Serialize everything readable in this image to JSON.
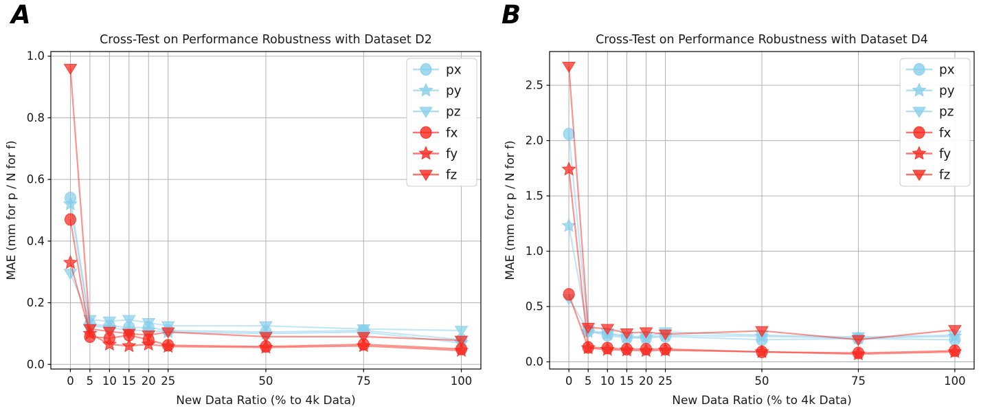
{
  "figure": {
    "background": "#ffffff",
    "grid_color": "#b0b0b0",
    "spine_color": "#000000",
    "blue": "#87CEEB",
    "red": "#f8281e"
  },
  "chart_data": [
    {
      "type": "line",
      "panel_label": "A",
      "title": "Cross-Test on Performance Robustness with Dataset D2",
      "xlabel": "New Data Ratio (% to 4k Data)",
      "ylabel": "MAE (mm for p / N for f)",
      "x": [
        0,
        5,
        10,
        15,
        20,
        25,
        50,
        75,
        100
      ],
      "xtick_labels": [
        "0",
        "5",
        "10",
        "15",
        "20",
        "25",
        "50",
        "75",
        "100"
      ],
      "yticks": [
        0.0,
        0.2,
        0.4,
        0.6,
        0.8,
        1.0
      ],
      "ytick_labels": [
        "0.0",
        "0.2",
        "0.4",
        "0.6",
        "0.8",
        "1.0"
      ],
      "xlim": [
        -5,
        105
      ],
      "ylim": [
        -0.015,
        1.015
      ],
      "grid": true,
      "legend_position": "upper right",
      "series": [
        {
          "name": "px",
          "color": "#87CEEB",
          "marker": "circle",
          "values": [
            0.54,
            0.13,
            0.125,
            0.12,
            0.12,
            0.11,
            0.105,
            0.11,
            0.08
          ]
        },
        {
          "name": "py",
          "color": "#87CEEB",
          "marker": "star",
          "values": [
            0.52,
            0.125,
            0.12,
            0.11,
            0.11,
            0.105,
            0.1,
            0.105,
            0.07
          ]
        },
        {
          "name": "pz",
          "color": "#87CEEB",
          "marker": "triangle-down",
          "values": [
            0.295,
            0.145,
            0.14,
            0.145,
            0.135,
            0.125,
            0.125,
            0.115,
            0.11
          ]
        },
        {
          "name": "fx",
          "color": "#f8281e",
          "marker": "circle",
          "values": [
            0.47,
            0.09,
            0.085,
            0.095,
            0.08,
            0.062,
            0.058,
            0.065,
            0.05
          ]
        },
        {
          "name": "fy",
          "color": "#f8281e",
          "marker": "star",
          "values": [
            0.33,
            0.1,
            0.065,
            0.06,
            0.065,
            0.058,
            0.055,
            0.06,
            0.045
          ]
        },
        {
          "name": "fz",
          "color": "#f8281e",
          "marker": "triangle-down",
          "values": [
            0.96,
            0.115,
            0.107,
            0.1,
            0.095,
            0.105,
            0.09,
            0.09,
            0.078
          ]
        }
      ]
    },
    {
      "type": "line",
      "panel_label": "B",
      "title": "Cross-Test on Performance Robustness with Dataset D4",
      "xlabel": "New Data Ratio (% to 4k Data)",
      "ylabel": "MAE (mm for p / N for f)",
      "x": [
        0,
        5,
        10,
        15,
        20,
        25,
        50,
        75,
        100
      ],
      "xtick_labels": [
        "0",
        "5",
        "10",
        "15",
        "20",
        "25",
        "50",
        "75",
        "100"
      ],
      "yticks": [
        0.0,
        0.5,
        1.0,
        1.5,
        2.0,
        2.5
      ],
      "ytick_labels": [
        "0.0",
        "0.5",
        "1.0",
        "1.5",
        "2.0",
        "2.5"
      ],
      "xlim": [
        -5,
        105
      ],
      "ylim": [
        -0.065,
        2.805
      ],
      "grid": true,
      "legend_position": "upper right",
      "series": [
        {
          "name": "px",
          "color": "#87CEEB",
          "marker": "circle",
          "values": [
            2.06,
            0.28,
            0.24,
            0.215,
            0.215,
            0.23,
            0.2,
            0.21,
            0.2
          ]
        },
        {
          "name": "py",
          "color": "#87CEEB",
          "marker": "star",
          "values": [
            1.23,
            0.27,
            0.255,
            0.225,
            0.22,
            0.24,
            0.23,
            0.215,
            0.23
          ]
        },
        {
          "name": "pz",
          "color": "#87CEEB",
          "marker": "triangle-down",
          "values": [
            0.57,
            0.285,
            0.26,
            0.23,
            0.225,
            0.27,
            0.24,
            0.225,
            0.24
          ]
        },
        {
          "name": "fx",
          "color": "#f8281e",
          "marker": "circle",
          "values": [
            0.61,
            0.13,
            0.125,
            0.115,
            0.115,
            0.115,
            0.09,
            0.08,
            0.1
          ]
        },
        {
          "name": "fy",
          "color": "#f8281e",
          "marker": "star",
          "values": [
            1.74,
            0.125,
            0.11,
            0.105,
            0.1,
            0.105,
            0.09,
            0.07,
            0.09
          ]
        },
        {
          "name": "fz",
          "color": "#f8281e",
          "marker": "triangle-down",
          "values": [
            2.67,
            0.31,
            0.3,
            0.26,
            0.27,
            0.25,
            0.28,
            0.2,
            0.29
          ]
        }
      ]
    }
  ]
}
